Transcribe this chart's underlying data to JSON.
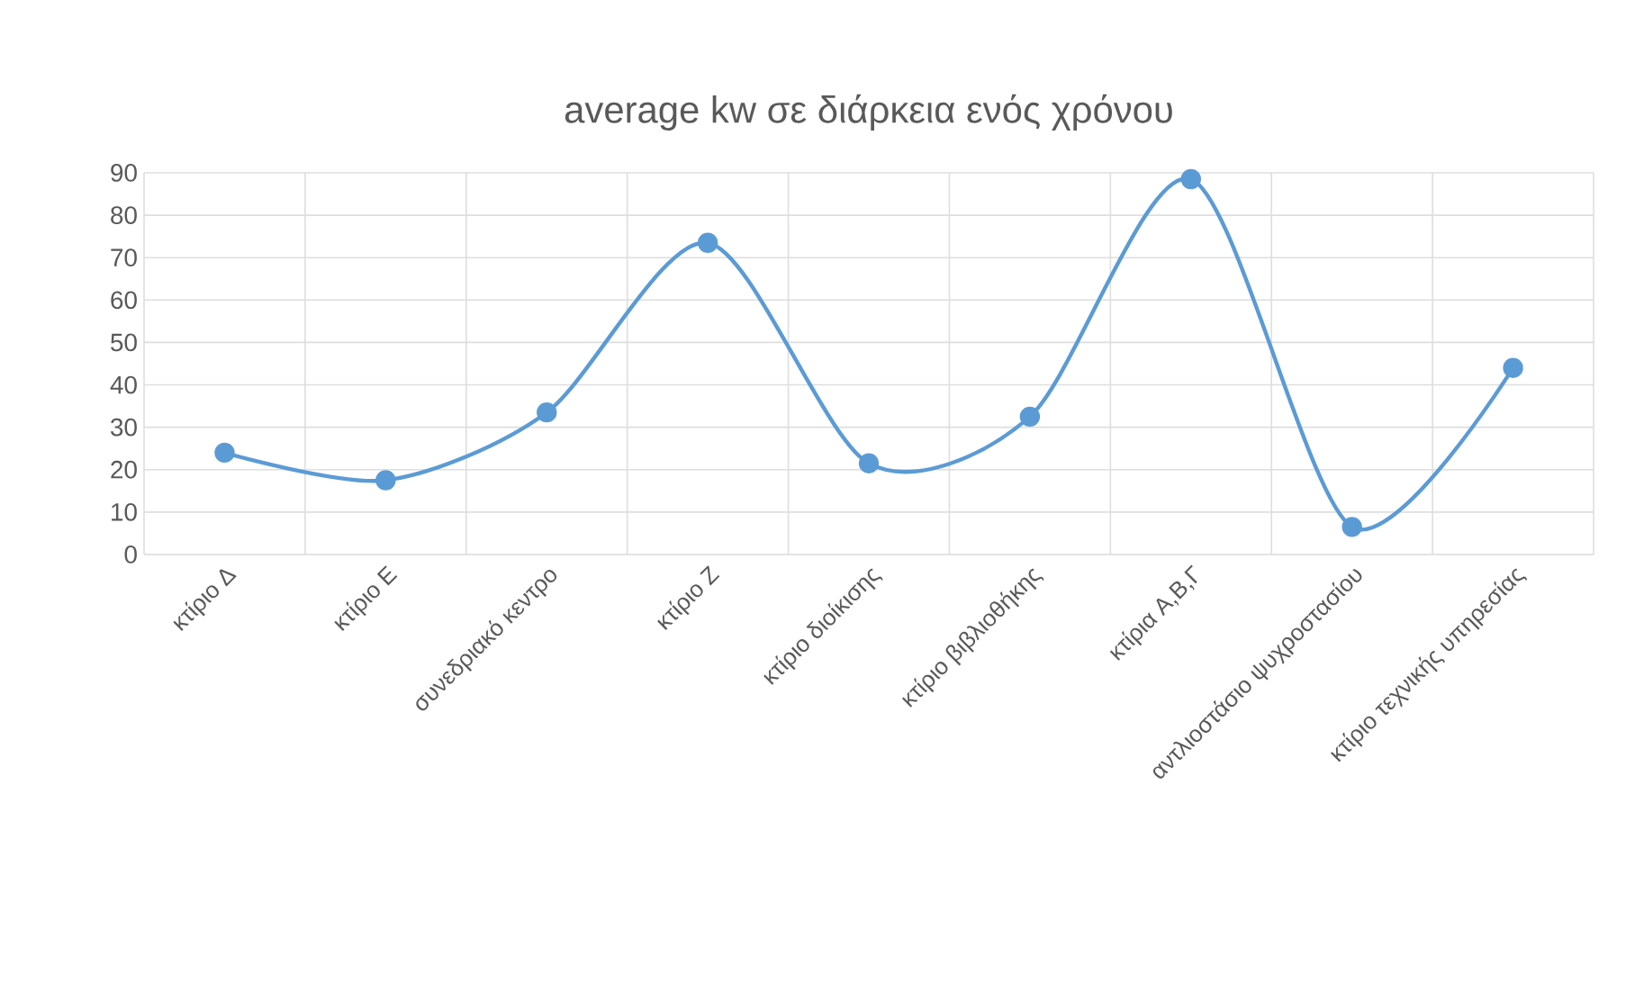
{
  "chart_data": {
    "type": "line",
    "title": "average kw σε διάρκεια ενός χρόνου",
    "categories": [
      "κτίριο Δ",
      "κτίριο Ε",
      "συνεδριακό κεντρο",
      "κτίριο Ζ",
      "κτίριο διοίκισης",
      "κτίριο βιβλιοθήκης",
      "κτίρια Α,Β,Γ",
      "αντλιοστάσιο ψυχροστασίου",
      "κτίριο τεχνικής υπηρεσίας"
    ],
    "series": [
      {
        "color": "#5b9bd5",
        "values": [
          24,
          17.5,
          33.5,
          73.5,
          21.5,
          32.5,
          88.5,
          6.5,
          44
        ]
      }
    ],
    "ylim": [
      0,
      90
    ],
    "yticks": [
      0,
      10,
      20,
      30,
      40,
      50,
      60,
      70,
      80,
      90
    ],
    "grid": true,
    "marker": "circle",
    "line_style": "solid"
  }
}
